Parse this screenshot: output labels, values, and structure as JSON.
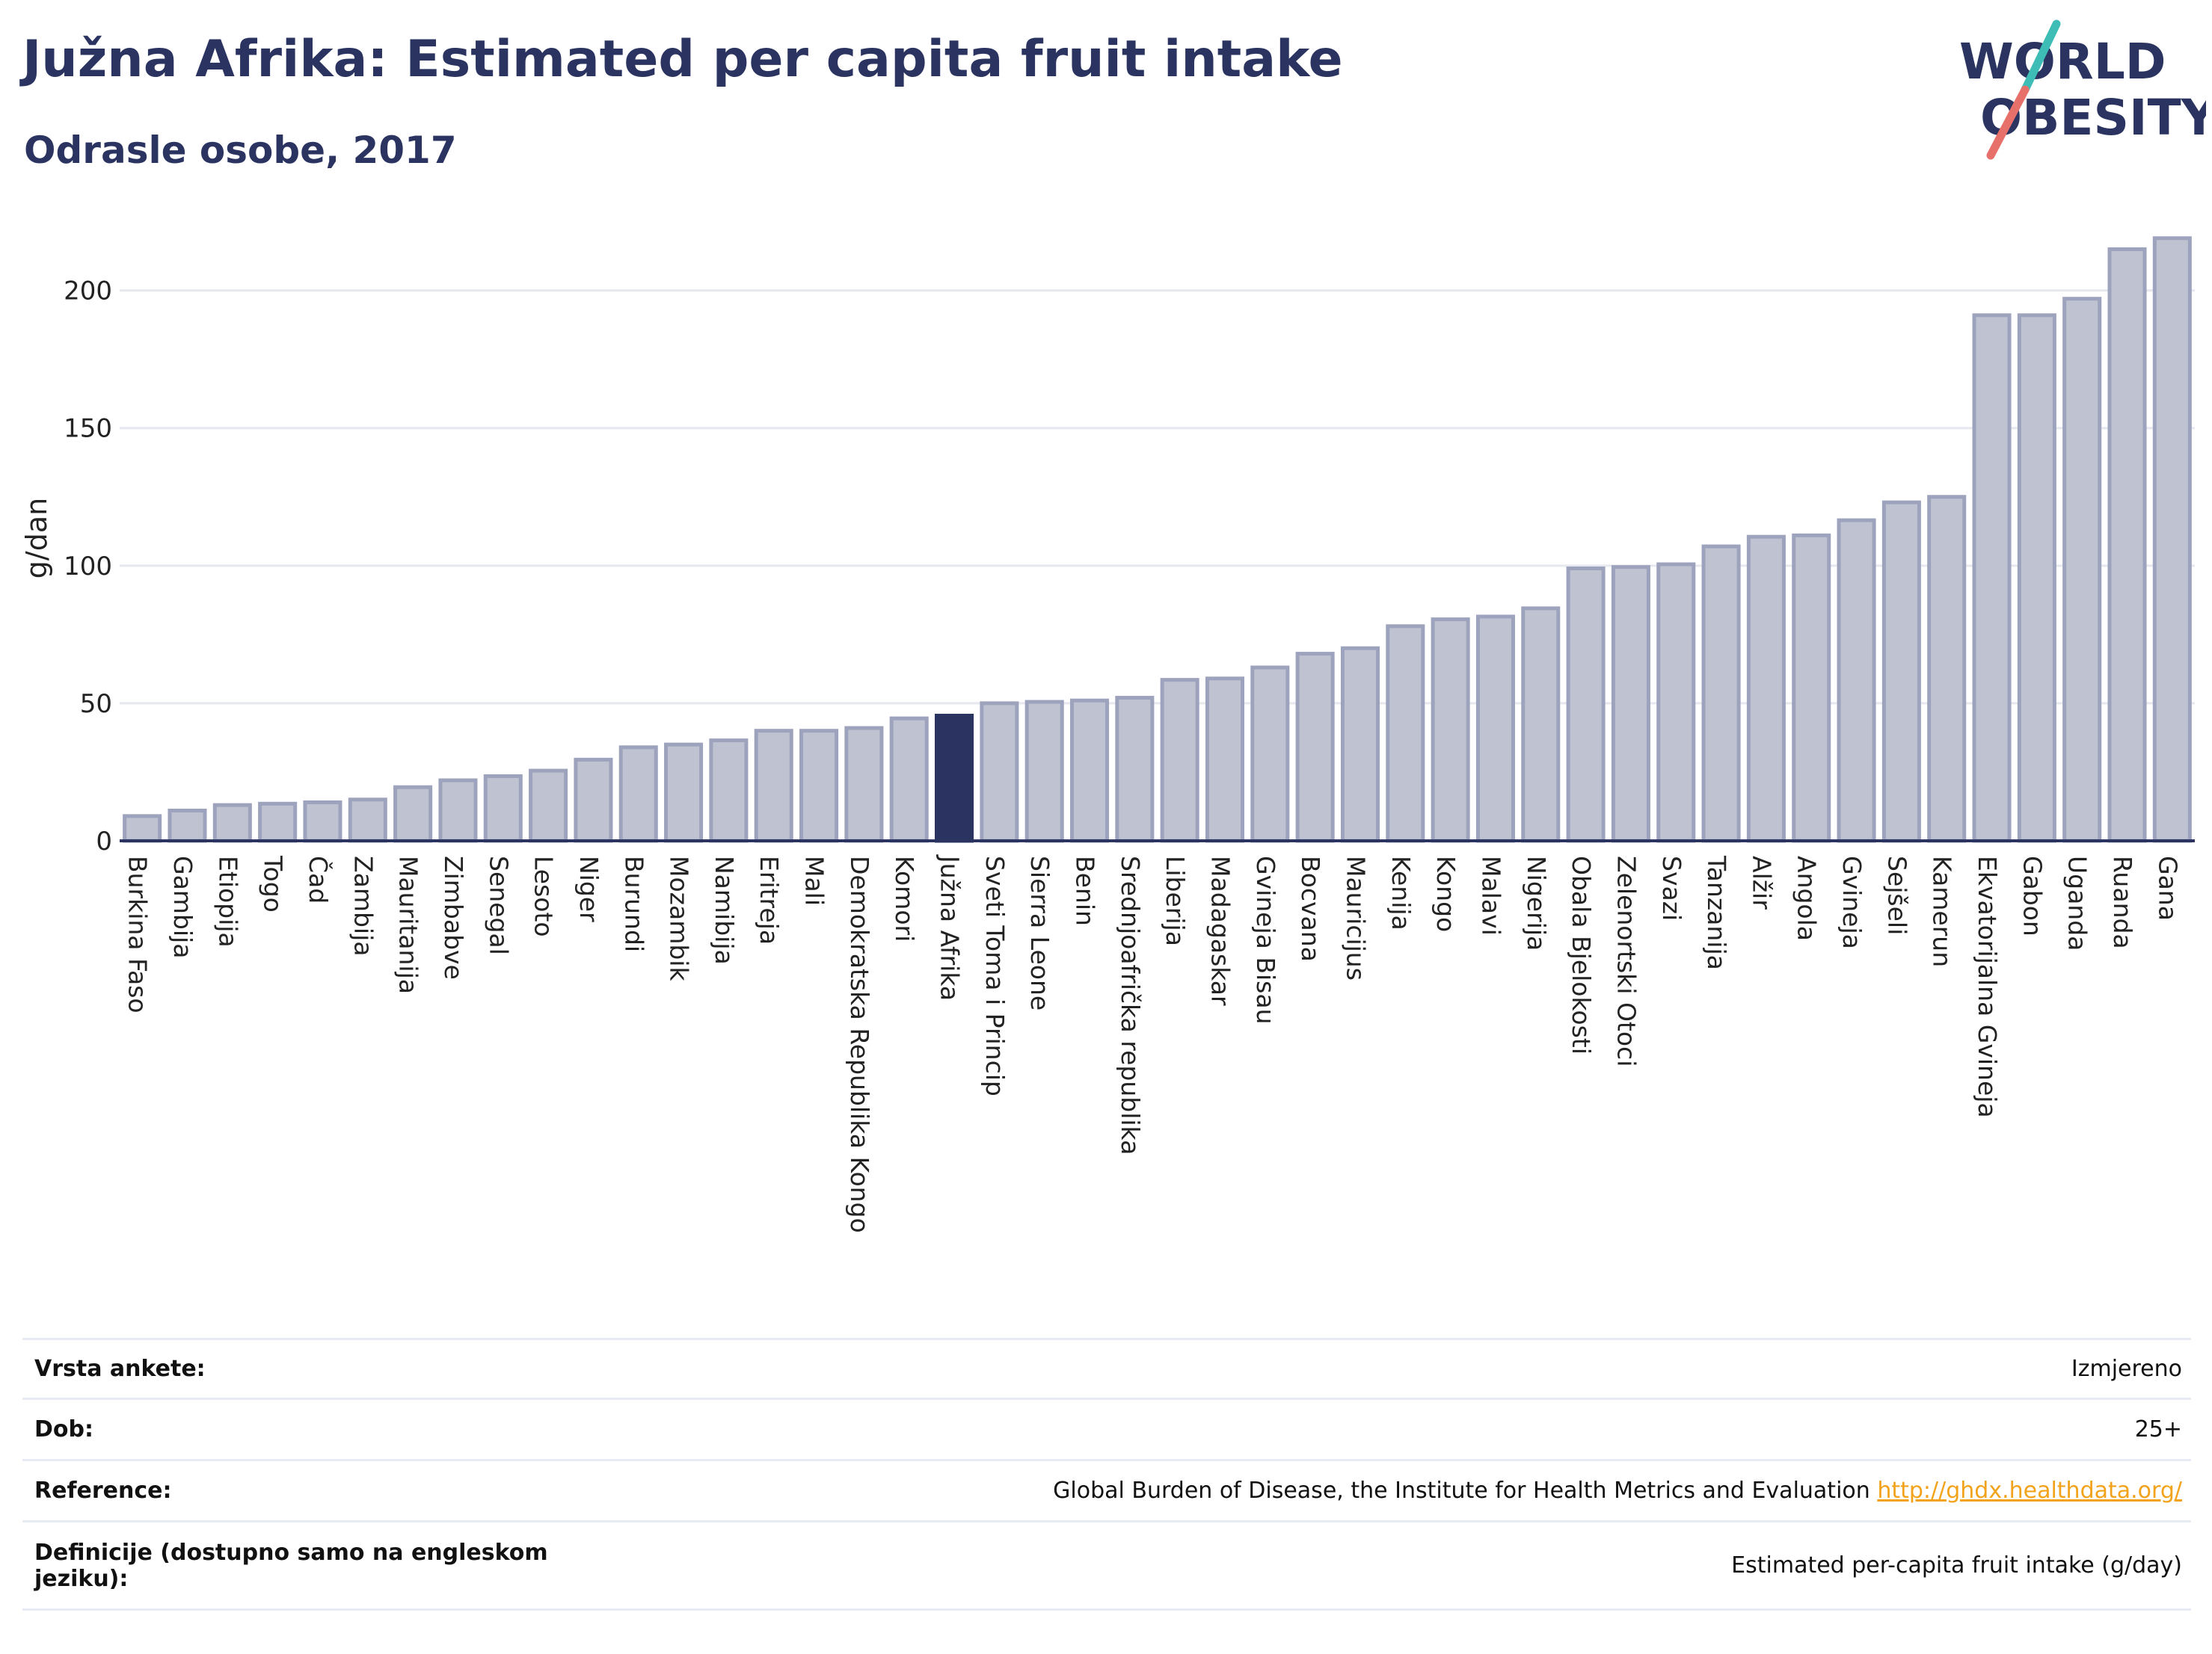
{
  "header": {
    "title": "Južna Afrika: Estimated per capita fruit intake",
    "subtitle": "Odrasle osobe, 2017"
  },
  "logo": {
    "line1": "WORLD",
    "line2": "OBESITY",
    "colors": {
      "text": "#2b3460",
      "slash_top": "#3dbdb5",
      "slash_bottom": "#e8706a"
    }
  },
  "colors": {
    "bar_fill": "#bfc3d1",
    "bar_stroke": "#9ea3bd",
    "highlight": "#2b3460",
    "grid": "#e6e8ef",
    "axis": "#2b3460"
  },
  "chart_data": {
    "type": "bar",
    "ylabel": "g/dan",
    "ylim": [
      0,
      220
    ],
    "yticks": [
      0,
      50,
      100,
      150,
      200
    ],
    "grid": true,
    "highlight": "Južna Afrika",
    "categories": [
      "Burkina Faso",
      "Gambija",
      "Etiopija",
      "Togo",
      "Čad",
      "Zambija",
      "Mauritanija",
      "Zimbabve",
      "Senegal",
      "Lesoto",
      "Niger",
      "Burundi",
      "Mozambik",
      "Namibija",
      "Eritreja",
      "Mali",
      "Demokratska Republika Kongo",
      "Komori",
      "Južna Afrika",
      "Sveti Toma i Princip",
      "Sierra Leone",
      "Benin",
      "Srednjoafrička republika",
      "Liberija",
      "Madagaskar",
      "Gvineja Bisau",
      "Bocvana",
      "Mauricijus",
      "Kenija",
      "Kongo",
      "Malavi",
      "Nigerija",
      "Obala Bjelokosti",
      "Zelenortski Otoci",
      "Svazi",
      "Tanzanija",
      "Alžir",
      "Angola",
      "Gvineja",
      "Sejšeli",
      "Kamerun",
      "Ekvatorijalna Gvineja",
      "Gabon",
      "Uganda",
      "Ruanda",
      "Gana"
    ],
    "values": [
      9,
      11,
      13,
      13.5,
      14,
      15,
      19.5,
      22,
      23.5,
      25.5,
      29.5,
      34,
      35,
      36.5,
      40,
      40,
      41,
      44.5,
      45.5,
      50,
      50.5,
      51,
      52,
      58.5,
      59,
      63,
      68,
      70,
      78,
      80.5,
      81.5,
      84.5,
      99,
      99.5,
      100.5,
      107,
      110.5,
      111,
      116.5,
      123,
      125,
      191,
      191,
      197,
      215,
      219
    ]
  },
  "meta_table": {
    "rows": [
      {
        "key": "Vrsta ankete:",
        "value": "Izmjereno"
      },
      {
        "key": "Dob:",
        "value": "25+"
      },
      {
        "key": "Reference:",
        "value": "Global Burden of Disease, the Institute for Health Metrics and Evaluation ",
        "link": "http://ghdx.healthdata.org/"
      },
      {
        "key": "Definicije (dostupno samo na engleskom jeziku):",
        "value": "Estimated per-capita fruit intake (g/day)"
      }
    ]
  }
}
